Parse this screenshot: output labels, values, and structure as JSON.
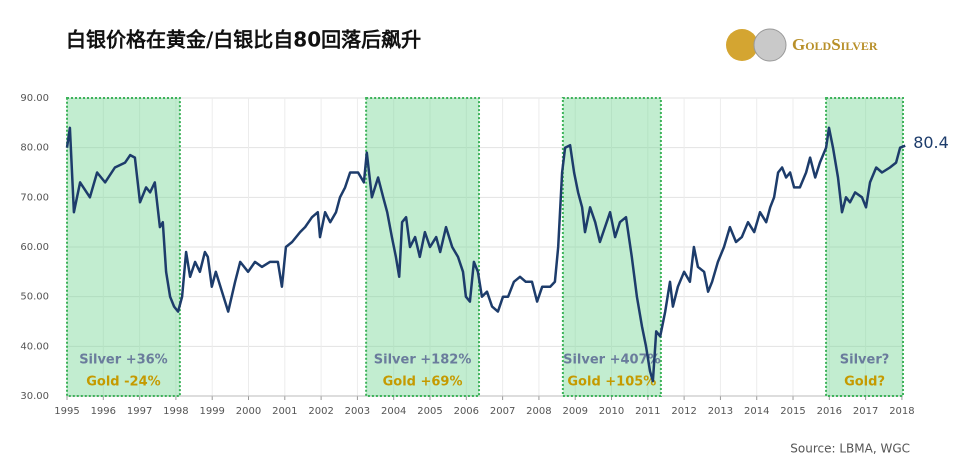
{
  "chart_data": {
    "type": "line",
    "title": "白银价格在黄金/白银比自80回落后飙升",
    "logo_text": "GoldSilver",
    "source": "Source: LBMA, WGC",
    "end_label": "80.4",
    "xlim": [
      1995,
      2018.25
    ],
    "xticks": [
      1995,
      1996,
      1997,
      1998,
      1999,
      2000,
      2001,
      2002,
      2003,
      2004,
      2005,
      2006,
      2007,
      2008,
      2009,
      2010,
      2011,
      2012,
      2013,
      2014,
      2015,
      2016,
      2017,
      2018
    ],
    "ylim": [
      30,
      90
    ],
    "yticks": [
      {
        "value": 30,
        "label": "30.00"
      },
      {
        "value": 40,
        "label": "40.00"
      },
      {
        "value": 50,
        "label": "50.00"
      },
      {
        "value": 60,
        "label": "60.00"
      },
      {
        "value": 70,
        "label": "70.00"
      },
      {
        "value": 80,
        "label": "80.00"
      },
      {
        "value": 90,
        "label": "90.00"
      }
    ],
    "grid": true,
    "shaded_regions": [
      {
        "x": [
          1995.0,
          1998.11
        ],
        "labels": [
          "Silver +36%",
          "Gold -24%"
        ]
      },
      {
        "x": [
          2003.24,
          2006.35
        ],
        "labels": [
          "Silver +182%",
          "Gold +69%"
        ]
      },
      {
        "x": [
          2008.66,
          2011.36
        ],
        "labels": [
          "Silver +407%",
          "Gold +105%"
        ]
      },
      {
        "x": [
          2015.91,
          2018.03
        ],
        "labels": [
          "Silver?",
          "Gold?"
        ]
      }
    ],
    "x": [
      1995.0,
      1995.08,
      1995.19,
      1995.36,
      1995.63,
      1995.83,
      1996.05,
      1996.32,
      1996.6,
      1996.74,
      1996.87,
      1997.01,
      1997.18,
      1997.29,
      1997.42,
      1997.56,
      1997.64,
      1997.73,
      1997.84,
      1997.95,
      1998.06,
      1998.17,
      1998.28,
      1998.39,
      1998.53,
      1998.66,
      1998.8,
      1998.88,
      1998.99,
      1999.1,
      1999.27,
      1999.44,
      1999.63,
      1999.77,
      1999.99,
      2000.18,
      2000.37,
      2000.59,
      2000.81,
      2000.92,
      2001.03,
      2001.2,
      2001.42,
      2001.56,
      2001.75,
      2001.91,
      2001.97,
      2002.11,
      2002.25,
      2002.41,
      2002.52,
      2002.66,
      2002.8,
      2003.02,
      2003.18,
      2003.26,
      2003.4,
      2003.57,
      2003.71,
      2003.82,
      2003.95,
      2004.06,
      2004.15,
      2004.23,
      2004.34,
      2004.45,
      2004.59,
      2004.72,
      2004.86,
      2005.0,
      2005.17,
      2005.28,
      2005.44,
      2005.61,
      2005.77,
      2005.91,
      2005.99,
      2006.1,
      2006.21,
      2006.32,
      2006.43,
      2006.57,
      2006.71,
      2006.87,
      2007.01,
      2007.15,
      2007.31,
      2007.48,
      2007.64,
      2007.81,
      2007.95,
      2008.09,
      2008.31,
      2008.44,
      2008.53,
      2008.64,
      2008.72,
      2008.86,
      2008.97,
      2009.08,
      2009.19,
      2009.27,
      2009.41,
      2009.55,
      2009.68,
      2009.82,
      2009.96,
      2010.1,
      2010.23,
      2010.4,
      2010.56,
      2010.7,
      2010.84,
      2010.95,
      2011.06,
      2011.14,
      2011.23,
      2011.34,
      2011.48,
      2011.61,
      2011.69,
      2011.83,
      2012.0,
      2012.16,
      2012.27,
      2012.38,
      2012.55,
      2012.66,
      2012.77,
      2012.93,
      2013.1,
      2013.26,
      2013.43,
      2013.59,
      2013.76,
      2013.93,
      2014.09,
      2014.26,
      2014.37,
      2014.48,
      2014.59,
      2014.7,
      2014.81,
      2014.92,
      2015.03,
      2015.19,
      2015.36,
      2015.47,
      2015.61,
      2015.74,
      2015.91,
      2015.99,
      2016.1,
      2016.24,
      2016.35,
      2016.46,
      2016.57,
      2016.71,
      2016.9,
      2017.01,
      2017.12,
      2017.29,
      2017.45,
      2017.67,
      2017.84,
      2017.95,
      2018.09
    ],
    "series": [
      {
        "name": "Gold/Silver Ratio",
        "color": "#1d3c6b",
        "values": [
          80,
          84,
          67,
          73,
          70,
          75,
          73,
          76,
          77,
          78.5,
          78,
          69,
          72,
          71,
          73,
          64,
          65,
          55,
          50,
          48,
          47,
          50,
          59,
          54,
          57,
          55,
          59,
          58,
          52,
          55,
          51,
          47,
          53,
          57,
          55,
          57,
          56,
          57,
          57,
          52,
          60,
          61,
          63,
          64,
          66,
          67,
          62,
          67,
          65,
          67,
          70,
          72,
          75,
          75,
          73,
          79,
          70,
          74,
          70,
          67,
          62,
          58,
          54,
          65,
          66,
          60,
          62,
          58,
          63,
          60,
          62,
          59,
          64,
          60,
          58,
          55,
          50,
          49,
          57,
          55,
          50,
          51,
          48,
          47,
          50,
          50,
          53,
          54,
          53,
          53,
          49,
          52,
          52,
          53,
          60,
          75,
          80,
          80.5,
          75,
          71,
          68,
          63,
          68,
          65,
          61,
          64,
          67,
          62,
          65,
          66,
          58,
          50,
          44,
          40,
          35,
          33,
          43,
          42,
          47,
          53,
          48,
          52,
          55,
          53,
          60,
          56,
          55,
          51,
          53,
          57,
          60,
          64,
          61,
          62,
          65,
          63,
          67,
          65,
          68,
          70,
          75,
          76,
          74,
          75,
          72,
          72,
          75,
          78,
          74,
          77,
          80,
          84,
          80,
          74,
          67,
          70,
          69,
          71,
          70,
          68,
          73,
          76,
          75,
          76,
          77,
          80,
          80.4
        ]
      }
    ]
  }
}
